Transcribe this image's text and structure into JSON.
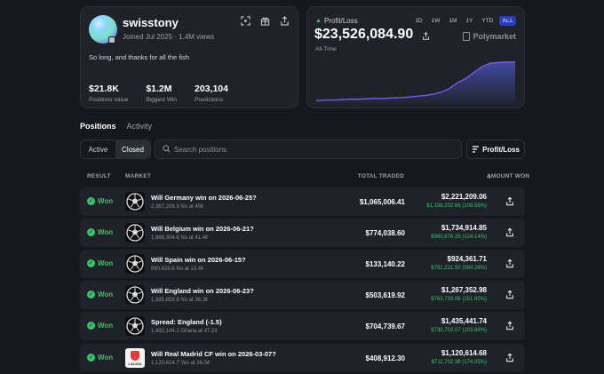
{
  "profile": {
    "username": "swisstony",
    "joined": "Joined Jul 2025",
    "views": "1.4M views",
    "bio": "So long, and thanks for all the fish",
    "icons": [
      "crosshair-icon",
      "gift-icon",
      "share-icon"
    ],
    "stats": [
      {
        "value": "$21.8K",
        "label": "Positions Value"
      },
      {
        "value": "$1.2M",
        "label": "Biggest Win"
      },
      {
        "value": "203,104",
        "label": "Predictions"
      }
    ]
  },
  "pnl": {
    "label": "Profit/Loss",
    "value": "$23,526,084.90",
    "period_label": "All-Time",
    "brand": "Polymarket",
    "ranges": [
      "1D",
      "1W",
      "1M",
      "1Y",
      "YTD",
      "ALL"
    ],
    "active_range": "ALL",
    "line_color": "#7b5cf0"
  },
  "chart_data": {
    "type": "area",
    "title": "",
    "xlabel": "",
    "ylabel": "",
    "series": [
      {
        "values": [
          0.02,
          0.03,
          0.03,
          0.04,
          0.05,
          0.05,
          0.06,
          0.07,
          0.07,
          0.08,
          0.09,
          0.1,
          0.12,
          0.14,
          0.17,
          0.22,
          0.3,
          0.45,
          0.55,
          0.7,
          0.85,
          0.93,
          0.95,
          0.96,
          0.96
        ]
      }
    ]
  },
  "tabs": [
    {
      "label": "Positions",
      "active": true
    },
    {
      "label": "Activity",
      "active": false
    }
  ],
  "filter": {
    "active_label": "Active",
    "closed_label": "Closed",
    "selected": "Closed"
  },
  "search": {
    "placeholder": "Search positions"
  },
  "sort_button": {
    "label": "Profit/Loss"
  },
  "table": {
    "headers": {
      "result": "RESULT",
      "market": "MARKET",
      "traded": "TOTAL TRADED",
      "amount": "AMOUNT WON"
    },
    "rows": [
      {
        "result": "Won",
        "title": "Will Germany win on 2026-06-25?",
        "sub": "2,367,206.9 No at 45¢",
        "traded": "$1,065,006.41",
        "amount": "$2,221,209.06",
        "gain": "$1,156,202.66 (108.56%)",
        "icon": "soccer-ball-icon"
      },
      {
        "result": "Won",
        "title": "Will Belgium win on 2026-06-21?",
        "sub": "1,868,304.6 No at 41.4¢",
        "traded": "$774,038.60",
        "amount": "$1,734,914.85",
        "gain": "$960,876.25 (124.14%)",
        "icon": "soccer-ball-icon"
      },
      {
        "result": "Won",
        "title": "Will Spain win on 2026-06-15?",
        "sub": "990,626.6 No at 13.4¢",
        "traded": "$133,140.22",
        "amount": "$924,361.71",
        "gain": "$791,221.50 (594.28%)",
        "icon": "soccer-ball-icon"
      },
      {
        "result": "Won",
        "title": "Will England win on 2026-06-23?",
        "sub": "1,385,855.6 No at 36.3¢",
        "traded": "$503,619.92",
        "amount": "$1,267,352.98",
        "gain": "$763,733.06 (151.65%)",
        "icon": "soccer-ball-icon"
      },
      {
        "result": "Won",
        "title": "Spread: England (-1.5)",
        "sub": "1,492,144.1 Ghana at 47.2¢",
        "traded": "$704,739.67",
        "amount": "$1,435,441.74",
        "gain": "$730,702.07 (103.68%)",
        "icon": "soccer-ball-icon"
      },
      {
        "result": "Won",
        "title": "Will Real Madrid CF win on 2026-03-07?",
        "sub": "1,120,614.7 Yes at 36.5¢",
        "traded": "$408,912.30",
        "amount": "$1,120,614.68",
        "gain": "$711,702.38 (174.05%)",
        "icon": "laliga-logo",
        "logo_text": "LALIGA"
      }
    ]
  }
}
